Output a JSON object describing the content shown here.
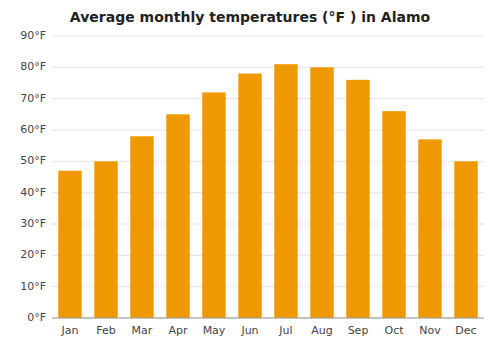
{
  "chart_data": {
    "type": "bar",
    "title": "Average monthly temperatures (°F ) in Alamo",
    "categories": [
      "Jan",
      "Feb",
      "Mar",
      "Apr",
      "May",
      "Jun",
      "Jul",
      "Aug",
      "Sep",
      "Oct",
      "Nov",
      "Dec"
    ],
    "values": [
      47,
      50,
      58,
      65,
      72,
      78,
      81,
      80,
      76,
      66,
      57,
      50
    ],
    "color": "#F09800",
    "ylim": [
      0,
      90
    ],
    "yticks": [
      {
        "value": 0,
        "label": "0°F"
      },
      {
        "value": 10,
        "label": "10°F"
      },
      {
        "value": 20,
        "label": "20°F"
      },
      {
        "value": 30,
        "label": "30°F"
      },
      {
        "value": 40,
        "label": "40°F"
      },
      {
        "value": 50,
        "label": "50°F"
      },
      {
        "value": 60,
        "label": "60°F"
      },
      {
        "value": 70,
        "label": "70°F"
      },
      {
        "value": 80,
        "label": "80°F"
      },
      {
        "value": 90,
        "label": "90°F"
      }
    ],
    "grid": true
  }
}
